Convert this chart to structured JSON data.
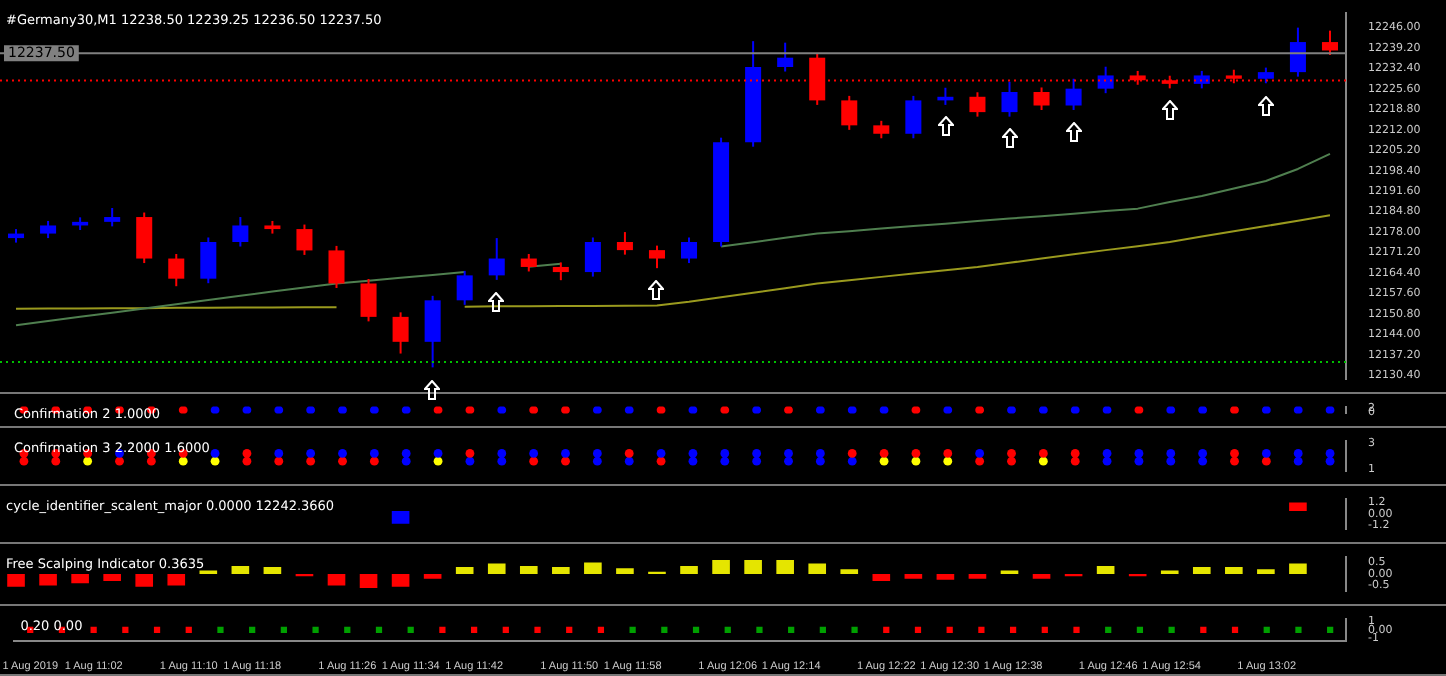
{
  "chart_data": [
    {
      "type": "candlestick",
      "title": "#Germany30,M1 12238.50 12239.25 12236.50 12237.50",
      "tick_labels": "y",
      "categories": [
        null,
        null,
        null,
        null,
        null,
        null,
        null,
        null,
        null,
        null,
        null,
        null,
        null,
        null,
        null,
        null,
        null,
        null,
        null,
        null,
        null,
        null,
        null,
        null,
        null,
        null,
        null,
        null,
        null,
        null,
        null,
        null,
        null,
        null,
        null,
        null,
        null,
        null,
        null,
        null,
        null,
        null
      ],
      "ohlc": [
        [
          12176.0,
          12179.0,
          12174.5,
          12177.5
        ],
        [
          12177.5,
          12181.7,
          12176.0,
          12180.2
        ],
        [
          12180.2,
          12182.9,
          12178.7,
          12181.4
        ],
        [
          12181.4,
          12186.0,
          12179.9,
          12183.0
        ],
        [
          12183.0,
          12184.5,
          12167.7,
          12169.2
        ],
        [
          12169.2,
          12170.7,
          12160.0,
          12162.5
        ],
        [
          12162.5,
          12176.2,
          12161.0,
          12174.7
        ],
        [
          12174.7,
          12183.0,
          12173.2,
          12180.2
        ],
        [
          12180.2,
          12181.7,
          12177.5,
          12179.0
        ],
        [
          12179.0,
          12180.5,
          12170.4,
          12171.9
        ],
        [
          12171.9,
          12173.4,
          12159.4,
          12160.9
        ],
        [
          12160.9,
          12162.4,
          12148.3,
          12149.8
        ],
        [
          12149.8,
          12151.3,
          12137.6,
          12141.5
        ],
        [
          12141.5,
          12156.8,
          12133.0,
          12155.3
        ],
        [
          12155.3,
          12165.1,
          12153.8,
          12163.6
        ],
        [
          12163.6,
          12176.0,
          12162.1,
          12169.2
        ],
        [
          12169.2,
          12170.7,
          12164.9,
          12166.4
        ],
        [
          12166.4,
          12167.9,
          12162.0,
          12164.7
        ],
        [
          12164.7,
          12176.2,
          12163.2,
          12174.7
        ],
        [
          12174.7,
          12178.0,
          12170.5,
          12172.0
        ],
        [
          12172.0,
          12173.5,
          12166.0,
          12169.2
        ],
        [
          12169.2,
          12176.2,
          12167.7,
          12174.7
        ],
        [
          12174.7,
          12209.4,
          12173.2,
          12207.9
        ],
        [
          12207.9,
          12241.5,
          12206.4,
          12232.9
        ],
        [
          12232.9,
          12241.0,
          12231.4,
          12236.0
        ],
        [
          12236.0,
          12237.5,
          12220.3,
          12221.8
        ],
        [
          12221.8,
          12223.3,
          12212.0,
          12213.5
        ],
        [
          12213.5,
          12215.0,
          12209.2,
          12210.7
        ],
        [
          12210.7,
          12223.3,
          12209.2,
          12221.8
        ],
        [
          12221.8,
          12226.0,
          12220.3,
          12223.0
        ],
        [
          12223.0,
          12224.5,
          12216.4,
          12217.9
        ],
        [
          12217.9,
          12228.0,
          12216.4,
          12224.6
        ],
        [
          12224.6,
          12226.1,
          12218.6,
          12220.1
        ],
        [
          12220.1,
          12229.0,
          12218.6,
          12225.7
        ],
        [
          12225.7,
          12233.0,
          12224.2,
          12230.1
        ],
        [
          12230.1,
          12231.6,
          12227.0,
          12228.5
        ],
        [
          12228.5,
          12230.0,
          12225.8,
          12227.3
        ],
        [
          12227.3,
          12231.6,
          12225.8,
          12230.1
        ],
        [
          12230.1,
          12232.0,
          12227.5,
          12229.0
        ],
        [
          12229.0,
          12232.7,
          12227.5,
          12231.2
        ],
        [
          12231.2,
          12246.0,
          12229.7,
          12241.2
        ],
        [
          12241.2,
          12245.0,
          12236.9,
          12238.4
        ]
      ],
      "colors": [
        "#0000ff",
        "#0000ff",
        "#0000ff",
        "#0000ff",
        "#ff0000",
        "#ff0000",
        "#0000ff",
        "#0000ff",
        "#ff0000",
        "#ff0000",
        "#ff0000",
        "#ff0000",
        "#ff0000",
        "#0000ff",
        "#0000ff",
        "#0000ff",
        "#ff0000",
        "#ff0000",
        "#0000ff",
        "#ff0000",
        "#ff0000",
        "#0000ff",
        "#0000ff",
        "#0000ff",
        "#0000ff",
        "#ff0000",
        "#ff0000",
        "#ff0000",
        "#0000ff",
        "#0000ff",
        "#ff0000",
        "#0000ff",
        "#ff0000",
        "#0000ff",
        "#0000ff",
        "#ff0000",
        "#ff0000",
        "#0000ff",
        "#ff0000",
        "#0000ff",
        "#0000ff",
        "#ff0000"
      ],
      "series": [
        {
          "type": "line",
          "color": "#4f7f4f",
          "values": [
            12147.0,
            12148.4,
            12149.8,
            12151.2,
            12152.6,
            12154.0,
            12155.4,
            12156.8,
            12158.2,
            12159.6,
            12160.9,
            12161.8,
            12162.8,
            12163.7,
            12164.7,
            null,
            12166.5,
            12167.5,
            null,
            null,
            null,
            null,
            12173.2,
            12174.6,
            12176.1,
            12177.5,
            12178.3,
            12179.2,
            12180.0,
            12180.8,
            12181.7,
            12182.5,
            12183.3,
            12184.1,
            12185.0,
            12185.8,
            12188.0,
            12190.0,
            12192.5,
            12195.0,
            12199.0,
            12204.0
          ]
        },
        {
          "type": "line",
          "color": "#9a9a1e",
          "values": [
            12152.5,
            12152.6,
            12152.6,
            12152.7,
            12152.7,
            12152.8,
            12152.8,
            12152.9,
            12152.9,
            12153.0,
            12153.0,
            null,
            null,
            null,
            12153.2,
            12153.3,
            12153.3,
            12153.4,
            12153.4,
            12153.5,
            12153.6,
            12154.8,
            12156.3,
            12157.8,
            12159.3,
            12160.9,
            12162.0,
            12163.1,
            12164.2,
            12165.3,
            12166.4,
            12167.8,
            12169.2,
            12170.6,
            12172.0,
            12173.3,
            12174.7,
            12176.5,
            12178.3,
            12180.0,
            12181.8,
            12183.6
          ]
        }
      ],
      "ylim": [
        12129.0,
        12251.0
      ],
      "yticks": [
        {
          "value": 12130.4,
          "label": "12130.40"
        },
        {
          "value": 12137.2,
          "label": "12137.20"
        },
        {
          "value": 12144.0,
          "label": "12144.00"
        },
        {
          "value": 12150.8,
          "label": "12150.80"
        },
        {
          "value": 12157.6,
          "label": "12157.60"
        },
        {
          "value": 12164.4,
          "label": "12164.40"
        },
        {
          "value": 12171.2,
          "label": "12171.20"
        },
        {
          "value": 12178.0,
          "label": "12178.00"
        },
        {
          "value": 12184.8,
          "label": "12184.80"
        },
        {
          "value": 12191.6,
          "label": "12191.60"
        },
        {
          "value": 12198.4,
          "label": "12198.40"
        },
        {
          "value": 12205.2,
          "label": "12205.20"
        },
        {
          "value": 12212.0,
          "label": "12212.00"
        },
        {
          "value": 12218.8,
          "label": "12218.80"
        },
        {
          "value": 12225.6,
          "label": "12225.60"
        },
        {
          "value": 12232.4,
          "label": "12232.40"
        },
        {
          "value": 12239.2,
          "label": "12239.20"
        },
        {
          "value": 12246.0,
          "label": "12246.00"
        }
      ],
      "ref_lines": [
        {
          "axis": "y",
          "value": 12237.5,
          "label": "12237.50",
          "color": "#808080",
          "line_style": "solid"
        },
        {
          "axis": "y",
          "value": 12228.4,
          "color": "#ff0000",
          "line_style": "dotted"
        },
        {
          "axis": "y",
          "value": 12134.8,
          "color": "#00c000",
          "line_style": "dotted"
        }
      ]
    },
    {
      "type": "scatter",
      "title": "Confirmation 2 1.0000",
      "tick_labels": "y",
      "marker": "circle",
      "ylim": [
        -0.5,
        2.5
      ],
      "yticks": [
        2,
        0
      ],
      "series": [
        {
          "color": "#ff0000",
          "values": [
            1,
            1,
            1,
            1,
            1,
            1,
            null,
            null,
            null,
            null,
            null,
            null,
            null,
            1,
            1,
            null,
            1,
            1,
            null,
            null,
            1,
            null,
            1,
            null,
            1,
            null,
            null,
            null,
            1,
            null,
            1,
            null,
            null,
            null,
            null,
            1,
            null,
            null,
            1,
            null,
            null,
            null
          ]
        },
        {
          "color": "#0000ff",
          "values": [
            null,
            null,
            null,
            null,
            null,
            null,
            1,
            1,
            1,
            1,
            1,
            1,
            1,
            null,
            null,
            1,
            null,
            null,
            1,
            1,
            null,
            1,
            null,
            1,
            null,
            1,
            1,
            1,
            null,
            1,
            null,
            1,
            1,
            1,
            1,
            null,
            1,
            1,
            null,
            1,
            1,
            1
          ]
        }
      ]
    },
    {
      "type": "scatter",
      "title": "Confirmation 3 2.2000 1.6000",
      "tick_labels": "y",
      "marker": "circle",
      "ylim": [
        0.8,
        3.2
      ],
      "yticks": [
        3,
        1
      ],
      "series": [
        {
          "color": "#ff0000",
          "values": [
            2.2,
            2.2,
            2.2,
            null,
            2.2,
            2.2,
            null,
            2.2,
            null,
            null,
            null,
            null,
            null,
            null,
            2.2,
            null,
            null,
            null,
            null,
            2.2,
            null,
            null,
            null,
            null,
            null,
            null,
            2.2,
            2.2,
            2.2,
            2.2,
            null,
            2.2,
            2.2,
            2.2,
            null,
            null,
            null,
            null,
            2.2,
            null,
            null,
            null
          ]
        },
        {
          "color": "#0000ff",
          "values": [
            null,
            null,
            null,
            2.2,
            null,
            null,
            2.2,
            null,
            2.2,
            2.2,
            2.2,
            2.2,
            2.2,
            2.2,
            null,
            2.2,
            2.2,
            2.2,
            2.2,
            null,
            2.2,
            2.2,
            2.2,
            2.2,
            2.2,
            2.2,
            null,
            null,
            null,
            null,
            2.2,
            null,
            null,
            null,
            2.2,
            2.2,
            2.2,
            2.2,
            null,
            2.2,
            2.2,
            2.2
          ]
        },
        {
          "color": "#ff0000",
          "values": [
            1.6,
            1.6,
            null,
            1.6,
            1.6,
            null,
            null,
            1.6,
            1.6,
            1.6,
            1.6,
            1.6,
            null,
            null,
            null,
            null,
            1.6,
            1.6,
            null,
            null,
            1.6,
            null,
            null,
            null,
            null,
            null,
            null,
            null,
            null,
            null,
            1.6,
            1.6,
            null,
            1.6,
            null,
            null,
            null,
            null,
            1.6,
            1.6,
            null,
            null
          ]
        },
        {
          "color": "#ffff00",
          "values": [
            null,
            null,
            1.6,
            null,
            null,
            1.6,
            1.6,
            null,
            null,
            null,
            null,
            null,
            null,
            1.6,
            null,
            null,
            null,
            null,
            null,
            null,
            null,
            null,
            null,
            null,
            null,
            null,
            null,
            1.6,
            1.6,
            1.6,
            null,
            null,
            1.6,
            null,
            null,
            null,
            null,
            null,
            null,
            null,
            null,
            null
          ]
        },
        {
          "color": "#0000ff",
          "values": [
            null,
            null,
            null,
            null,
            null,
            null,
            null,
            null,
            null,
            null,
            null,
            null,
            1.6,
            null,
            1.6,
            1.6,
            null,
            null,
            1.6,
            1.6,
            null,
            1.6,
            1.6,
            1.6,
            1.6,
            1.6,
            1.6,
            null,
            null,
            null,
            null,
            null,
            null,
            null,
            1.6,
            1.6,
            1.6,
            1.6,
            null,
            null,
            1.6,
            1.6
          ]
        }
      ]
    },
    {
      "type": "bar",
      "title": "cycle_identifier_scalent_major 0.0000 12242.3660",
      "tick_labels": "y",
      "ylim": [
        -1.6,
        1.6
      ],
      "yticks": [
        1.2,
        {
          "value": 0,
          "label": "0.00"
        },
        -1.2
      ],
      "values": [
        null,
        null,
        null,
        null,
        null,
        null,
        null,
        null,
        null,
        null,
        null,
        null,
        -1.3,
        null,
        null,
        null,
        null,
        null,
        null,
        null,
        null,
        null,
        null,
        null,
        null,
        null,
        null,
        null,
        null,
        null,
        null,
        null,
        null,
        null,
        null,
        null,
        null,
        null,
        null,
        null,
        0.9,
        null
      ],
      "base": [
        null,
        null,
        null,
        null,
        null,
        null,
        null,
        null,
        null,
        null,
        null,
        null,
        0.3,
        null,
        null,
        null,
        null,
        null,
        null,
        null,
        null,
        null,
        null,
        null,
        null,
        null,
        null,
        null,
        null,
        null,
        null,
        null,
        null,
        null,
        null,
        null,
        null,
        null,
        null,
        null,
        0.3,
        null
      ],
      "colors": [
        "#0000ff",
        "#0000ff",
        "#0000ff",
        "#0000ff",
        "#0000ff",
        "#0000ff",
        "#0000ff",
        "#0000ff",
        "#0000ff",
        "#0000ff",
        "#0000ff",
        "#0000ff",
        "#0000ff",
        "#0000ff",
        "#0000ff",
        "#0000ff",
        "#0000ff",
        "#0000ff",
        "#0000ff",
        "#0000ff",
        "#0000ff",
        "#ff0000",
        "#ff0000",
        "#ff0000",
        "#ff0000",
        "#ff0000",
        "#ff0000",
        "#ff0000",
        "#ff0000",
        "#ff0000",
        "#ff0000",
        "#ff0000",
        "#ff0000",
        "#ff0000",
        "#ff0000",
        "#ff0000",
        "#ff0000",
        "#ff0000",
        "#ff0000",
        "#ff0000",
        "#ff0000",
        "#ff0000"
      ]
    },
    {
      "type": "bar",
      "title": "Free Scalping Indicator 0.3635",
      "tick_labels": "y",
      "ylim": [
        -0.75,
        0.75
      ],
      "yticks": [
        0.5,
        {
          "value": 0,
          "label": "0.00"
        },
        -0.5
      ],
      "values": [
        -0.55,
        -0.5,
        -0.4,
        -0.3,
        -0.55,
        -0.5,
        0.15,
        0.35,
        0.3,
        -0.1,
        -0.5,
        -0.6,
        -0.55,
        -0.2,
        0.3,
        0.45,
        0.35,
        0.3,
        0.5,
        0.25,
        0.1,
        0.35,
        0.6,
        0.6,
        0.6,
        0.45,
        0.2,
        -0.3,
        -0.2,
        -0.25,
        -0.2,
        0.15,
        -0.2,
        -0.1,
        0.35,
        -0.1,
        0.15,
        0.3,
        0.3,
        0.2,
        0.45,
        null
      ],
      "colors": [
        "#ff0000",
        "#ff0000",
        "#ff0000",
        "#ff0000",
        "#ff0000",
        "#ff0000",
        "#e5e500",
        "#e5e500",
        "#e5e500",
        "#ff0000",
        "#ff0000",
        "#ff0000",
        "#ff0000",
        "#ff0000",
        "#e5e500",
        "#e5e500",
        "#e5e500",
        "#e5e500",
        "#e5e500",
        "#e5e500",
        "#e5e500",
        "#e5e500",
        "#e5e500",
        "#e5e500",
        "#e5e500",
        "#e5e500",
        "#e5e500",
        "#ff0000",
        "#ff0000",
        "#ff0000",
        "#ff0000",
        "#e5e500",
        "#ff0000",
        "#ff0000",
        "#e5e500",
        "#ff0000",
        "#e5e500",
        "#e5e500",
        "#e5e500",
        "#e5e500",
        "#e5e500",
        "#e5e500"
      ]
    },
    {
      "type": "scatter",
      "title": "0.20 0.00",
      "marker": "square",
      "ylim": [
        -1.3,
        1.3
      ],
      "yticks": [
        1,
        {
          "value": 0,
          "label": "0.00"
        },
        -1
      ],
      "categories": [
        "1 Aug 2019",
        null,
        "1 Aug 11:02",
        null,
        null,
        "1 Aug 11:10",
        null,
        "1 Aug 11:18",
        null,
        null,
        "1 Aug 11:26",
        null,
        "1 Aug 11:34",
        null,
        "1 Aug 11:42",
        null,
        null,
        "1 Aug 11:50",
        null,
        "1 Aug 11:58",
        null,
        null,
        "1 Aug 12:06",
        null,
        "1 Aug 12:14",
        null,
        null,
        "1 Aug 12:22",
        null,
        "1 Aug 12:30",
        null,
        "1 Aug 12:38",
        null,
        null,
        "1 Aug 12:46",
        null,
        "1 Aug 12:54",
        null,
        null,
        "1 Aug 13:02",
        null,
        null
      ],
      "series": [
        {
          "color": "#ff0000",
          "values": [
            0,
            0,
            0,
            0,
            0,
            0,
            null,
            null,
            null,
            null,
            null,
            null,
            null,
            0,
            0,
            0,
            0,
            0,
            0,
            null,
            null,
            null,
            null,
            null,
            null,
            null,
            null,
            0,
            0,
            0,
            0,
            0,
            0,
            0,
            null,
            null,
            null,
            0,
            0,
            null,
            null,
            null
          ]
        },
        {
          "color": "#00a000",
          "values": [
            null,
            null,
            null,
            null,
            null,
            null,
            0,
            0,
            0,
            0,
            0,
            0,
            0,
            null,
            null,
            null,
            null,
            null,
            null,
            0,
            0,
            0,
            0,
            0,
            0,
            0,
            0,
            null,
            null,
            null,
            null,
            null,
            null,
            null,
            0,
            0,
            0,
            null,
            null,
            0,
            0,
            0
          ]
        }
      ]
    }
  ]
}
